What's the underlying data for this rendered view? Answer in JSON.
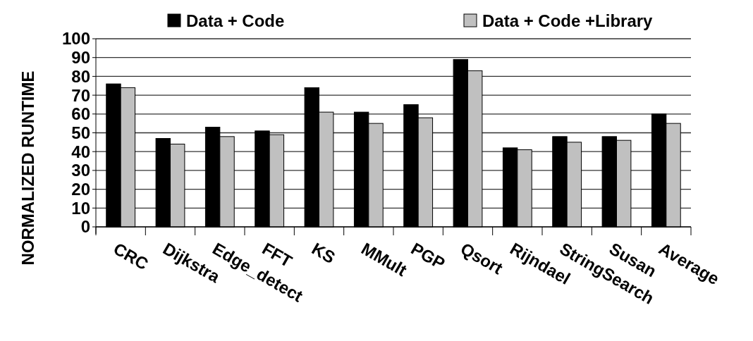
{
  "chart_data": {
    "type": "bar",
    "ylabel": "NORMALIZED RUNTIME",
    "categories": [
      "CRC",
      "Dijkstra",
      "Edge_detect",
      "FFT",
      "KS",
      "MMult",
      "PGP",
      "Qsort",
      "Rijndael",
      "StringSearch",
      "Susan",
      "Average"
    ],
    "series": [
      {
        "name": "Data + Code",
        "color": "#000000",
        "values": [
          76,
          47,
          53,
          51,
          74,
          61,
          65,
          89,
          42,
          48,
          48,
          60
        ]
      },
      {
        "name": "Data + Code +Library",
        "color": "#c0c0c0",
        "values": [
          74,
          44,
          48,
          49,
          61,
          55,
          58,
          83,
          41,
          45,
          46,
          55
        ]
      }
    ],
    "ylim": [
      0,
      100
    ],
    "yticks": [
      0,
      10,
      20,
      30,
      40,
      50,
      60,
      70,
      80,
      90,
      100
    ],
    "grid": "y",
    "legend": "top"
  }
}
